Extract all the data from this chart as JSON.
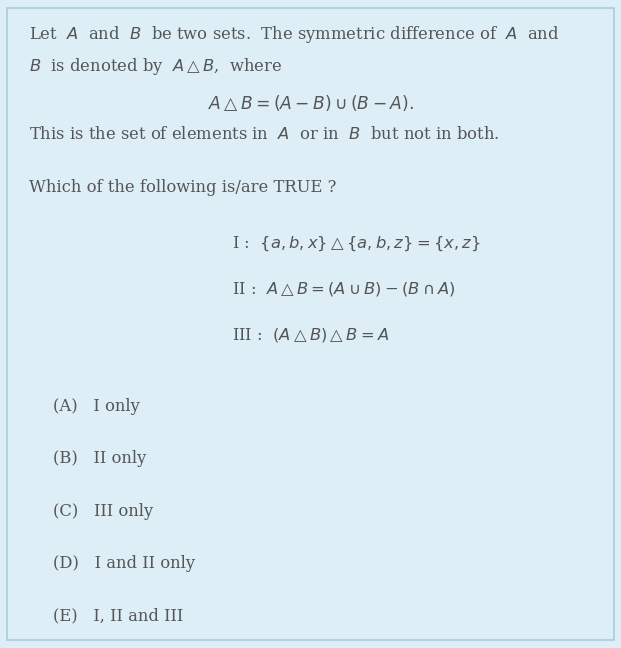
{
  "bg_color": "#ddeef6",
  "box_color": "#ffffff",
  "text_color": "#555555",
  "border_color": "#aaccdd",
  "fig_width": 6.21,
  "fig_height": 6.48,
  "dpi": 100,
  "paragraph1_line1": "Let  $A$  and  $B$  be two sets.  The symmetric difference of  $A$  and",
  "paragraph1_line2": "$B$  is denoted by  $A\\triangle B$,  where",
  "formula1": "$A\\triangle B = (A - B) \\cup (B - A).$",
  "paragraph2": "This is the set of elements in  $A$  or in  $B$  but not in both.",
  "question": "Which of the following is/are TRUE ?",
  "statement_I": "I :  $\\{a, b, x\\} \\triangle \\{a, b, z\\} = \\{x, z\\}$",
  "statement_II": "II :  $A\\triangle B = (A \\cup B) - (B \\cap A)$",
  "statement_III": "III :  $(A\\triangle B) \\triangle B = A$",
  "choice_A": "(A)   I only",
  "choice_B": "(B)   II only",
  "choice_C": "(C)   III only",
  "choice_D": "(D)   I and II only",
  "choice_E": "(E)   I, II and III",
  "font_size": 11.8,
  "font_family": "DejaVu Serif"
}
